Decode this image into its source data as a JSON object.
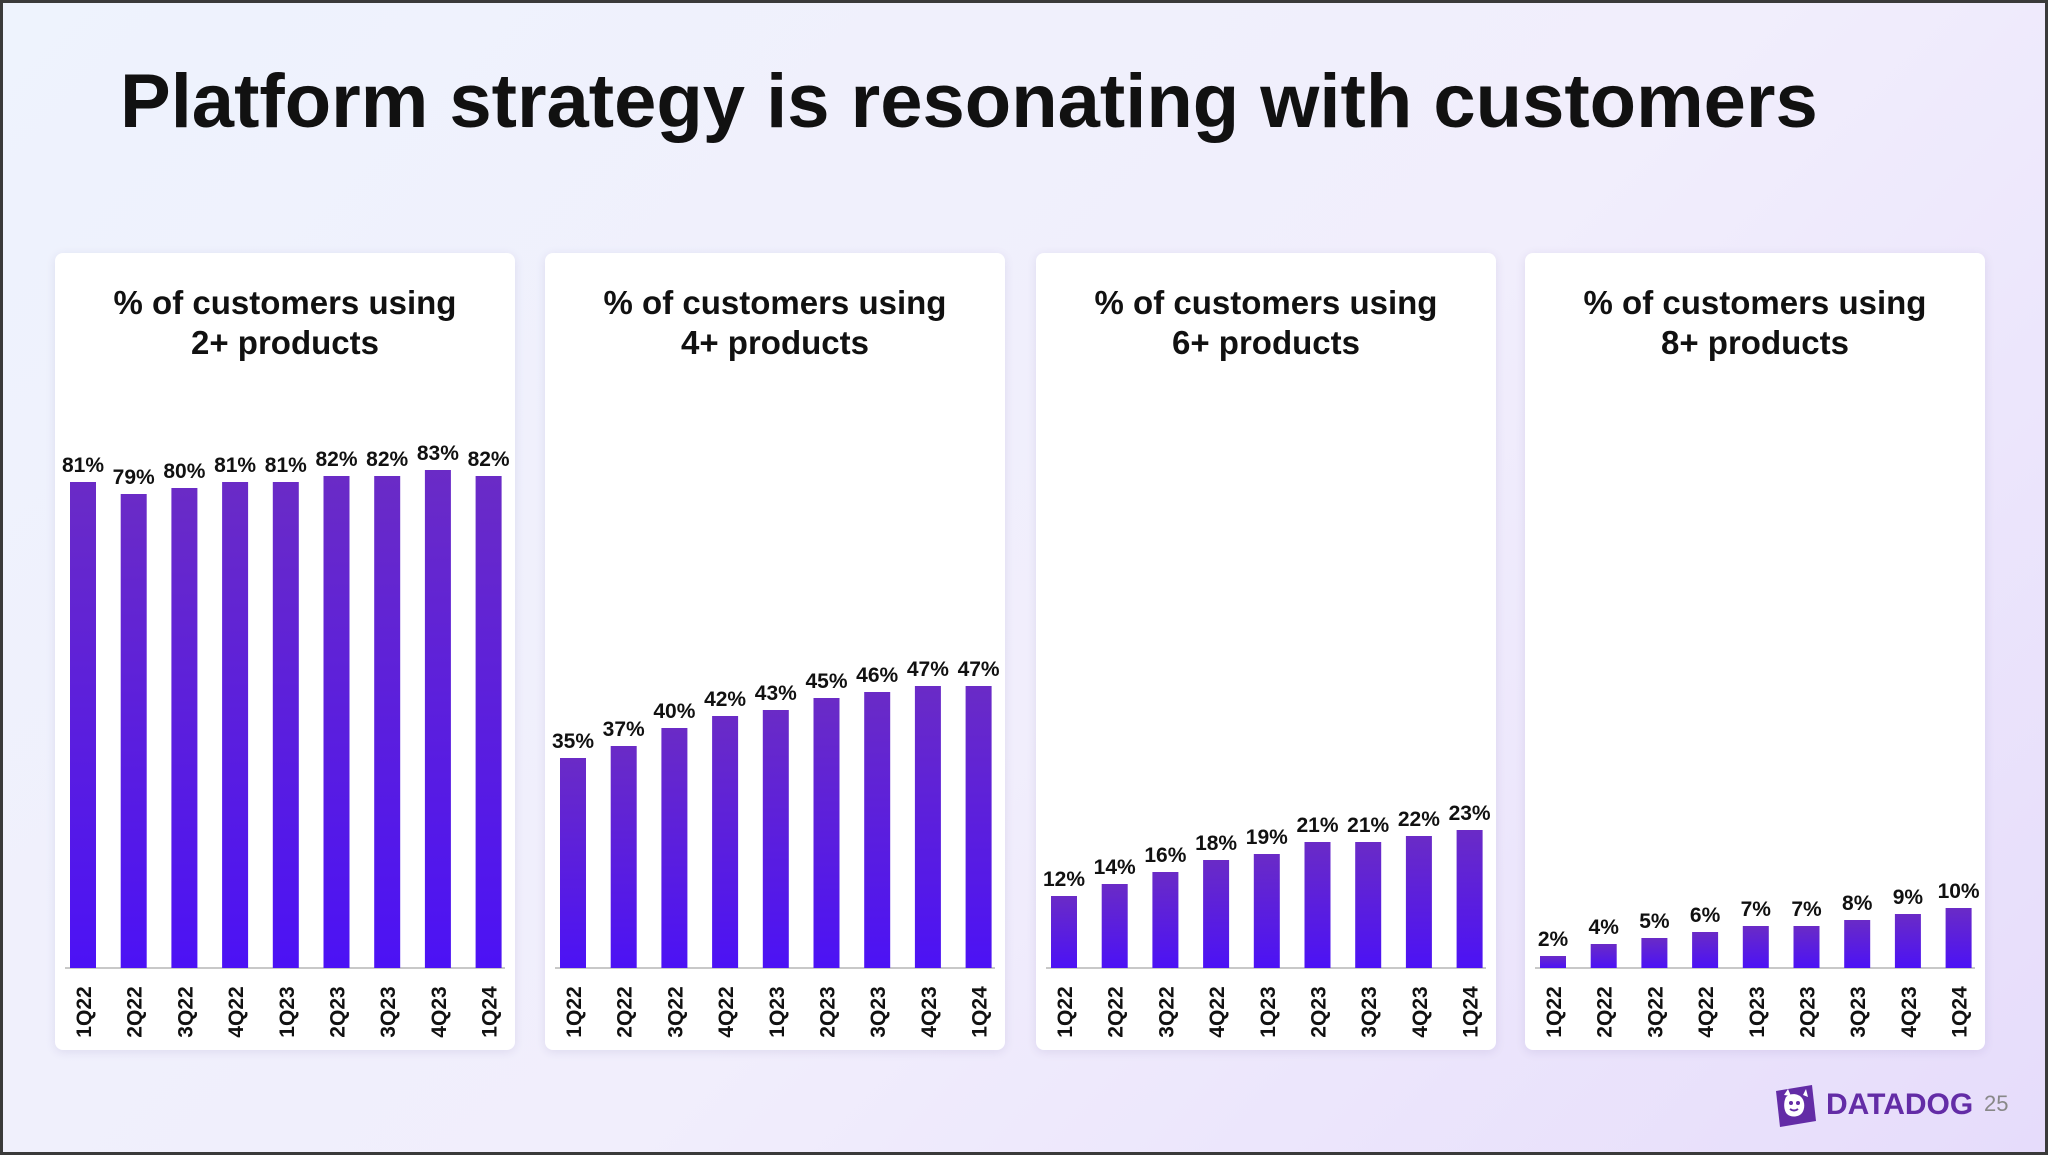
{
  "slide": {
    "title": "Platform strategy is resonating with customers",
    "logo_text": "DATADOG",
    "page_number": "25",
    "colors": {
      "bar_top": "#6a2bc6",
      "bar_bottom": "#4c12f5",
      "brand": "#632ca6"
    }
  },
  "chart_data": [
    {
      "type": "bar",
      "title_lines": [
        "% of customers using",
        "2+ products"
      ],
      "categories": [
        "1Q22",
        "2Q22",
        "3Q22",
        "4Q22",
        "1Q23",
        "2Q23",
        "3Q23",
        "4Q23",
        "1Q24"
      ],
      "values": [
        81,
        79,
        80,
        81,
        81,
        82,
        82,
        83,
        82
      ],
      "labels": [
        "81%",
        "79%",
        "80%",
        "81%",
        "81%",
        "82%",
        "82%",
        "83%",
        "82%"
      ],
      "ylim": [
        0,
        100
      ],
      "grid": false
    },
    {
      "type": "bar",
      "title_lines": [
        "% of customers using",
        "4+ products"
      ],
      "categories": [
        "1Q22",
        "2Q22",
        "3Q22",
        "4Q22",
        "1Q23",
        "2Q23",
        "3Q23",
        "4Q23",
        "1Q24"
      ],
      "values": [
        35,
        37,
        40,
        42,
        43,
        45,
        46,
        47,
        47
      ],
      "labels": [
        "35%",
        "37%",
        "40%",
        "42%",
        "43%",
        "45%",
        "46%",
        "47%",
        "47%"
      ],
      "ylim": [
        0,
        100
      ],
      "grid": false
    },
    {
      "type": "bar",
      "title_lines": [
        "% of customers using",
        "6+ products"
      ],
      "categories": [
        "1Q22",
        "2Q22",
        "3Q22",
        "4Q22",
        "1Q23",
        "2Q23",
        "3Q23",
        "4Q23",
        "1Q24"
      ],
      "values": [
        12,
        14,
        16,
        18,
        19,
        21,
        21,
        22,
        23
      ],
      "labels": [
        "12%",
        "14%",
        "16%",
        "18%",
        "19%",
        "21%",
        "21%",
        "22%",
        "23%"
      ],
      "ylim": [
        0,
        100
      ],
      "grid": false
    },
    {
      "type": "bar",
      "title_lines": [
        "% of customers using",
        "8+ products"
      ],
      "categories": [
        "1Q22",
        "2Q22",
        "3Q22",
        "4Q22",
        "1Q23",
        "2Q23",
        "3Q23",
        "4Q23",
        "1Q24"
      ],
      "values": [
        2,
        4,
        5,
        6,
        7,
        7,
        8,
        9,
        10
      ],
      "labels": [
        "2%",
        "4%",
        "5%",
        "6%",
        "7%",
        "7%",
        "8%",
        "9%",
        "10%"
      ],
      "ylim": [
        0,
        100
      ],
      "grid": false
    }
  ]
}
